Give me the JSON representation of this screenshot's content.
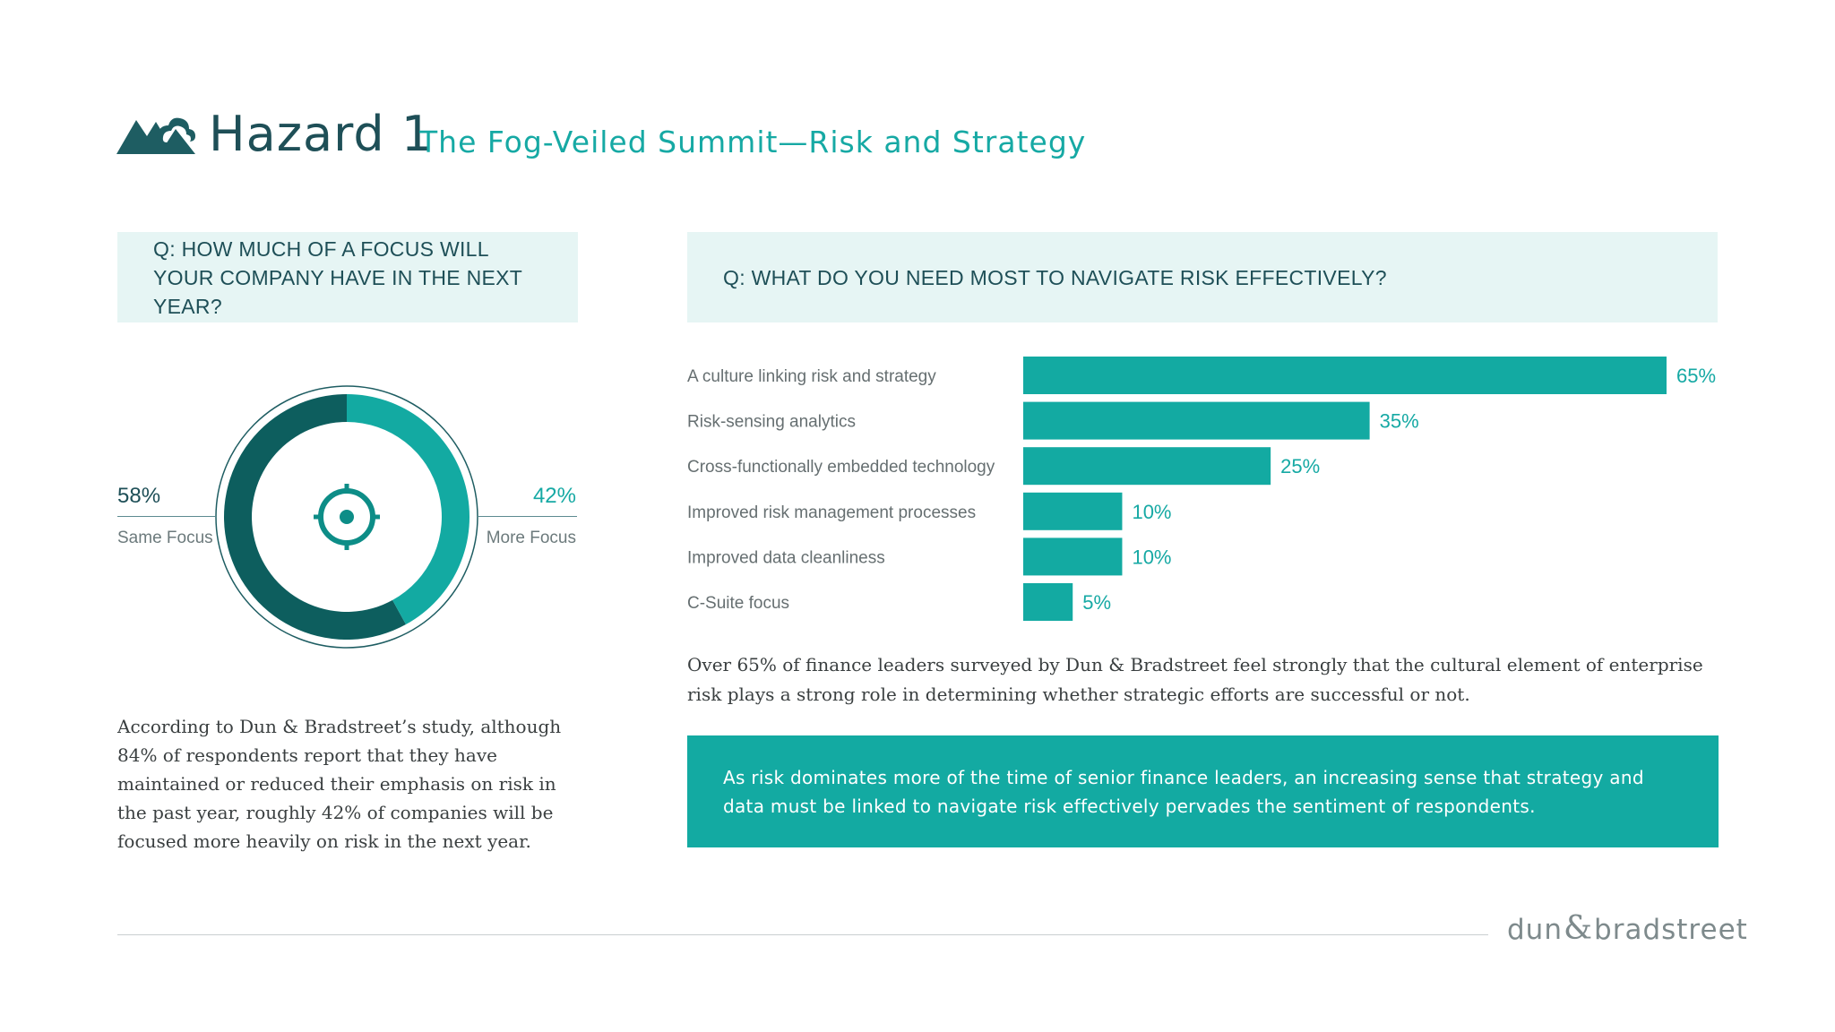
{
  "header": {
    "icon": "mountain-cloud-icon",
    "title": "Hazard 1",
    "subtitle": "The Fog-Veiled Summit—Risk and Strategy"
  },
  "colors": {
    "teal": "#13aaa2",
    "dark_teal": "#0d5e5e",
    "light_teal_bg": "#e6f5f4",
    "text_dark": "#1e4f57"
  },
  "left": {
    "question": "Q: HOW MUCH OF A FOCUS WILL YOUR COMPANY HAVE IN THE NEXT YEAR?",
    "paragraph": "According to Dun & Bradstreet’s study, although 84% of respondents report that they have maintained or reduced their emphasis on risk in the past year, roughly 42% of companies will be focused more heavily on risk in the next year.",
    "center_icon": "target-crosshair-icon"
  },
  "right": {
    "question": "Q: WHAT DO YOU NEED MOST TO NAVIGATE RISK EFFECTIVELY?",
    "paragraph": "Over 65% of finance leaders surveyed by Dun & Bradstreet feel strongly that the cultural element of enterprise risk plays a strong role in determining whether strategic efforts are successful or not.",
    "callout": "As risk dominates more of the time of senior finance leaders, an increasing sense that strategy and data must be linked to navigate risk effectively pervades the sentiment of respondents."
  },
  "chart_data": [
    {
      "type": "pie",
      "subtype": "donut",
      "slices": [
        {
          "label": "Same Focus",
          "value": 58,
          "display": "58%",
          "color": "#0d5e5e"
        },
        {
          "label": "More Focus",
          "value": 42,
          "display": "42%",
          "color": "#13aaa2"
        }
      ]
    },
    {
      "type": "bar",
      "orientation": "horizontal",
      "categories": [
        "A culture linking risk and strategy",
        "Risk-sensing analytics",
        "Cross-functionally embedded technology",
        "Improved risk management processes",
        "Improved data cleanliness",
        "C-Suite focus"
      ],
      "values": [
        65,
        35,
        25,
        10,
        10,
        5
      ],
      "value_labels": [
        "65%",
        "35%",
        "25%",
        "10%",
        "10%",
        "5%"
      ],
      "xlim": [
        0,
        65
      ],
      "grid": false,
      "color": "#13aaa2"
    }
  ],
  "footer": {
    "brand_left": "dun",
    "brand_amp": "&",
    "brand_right": "bradstreet"
  }
}
